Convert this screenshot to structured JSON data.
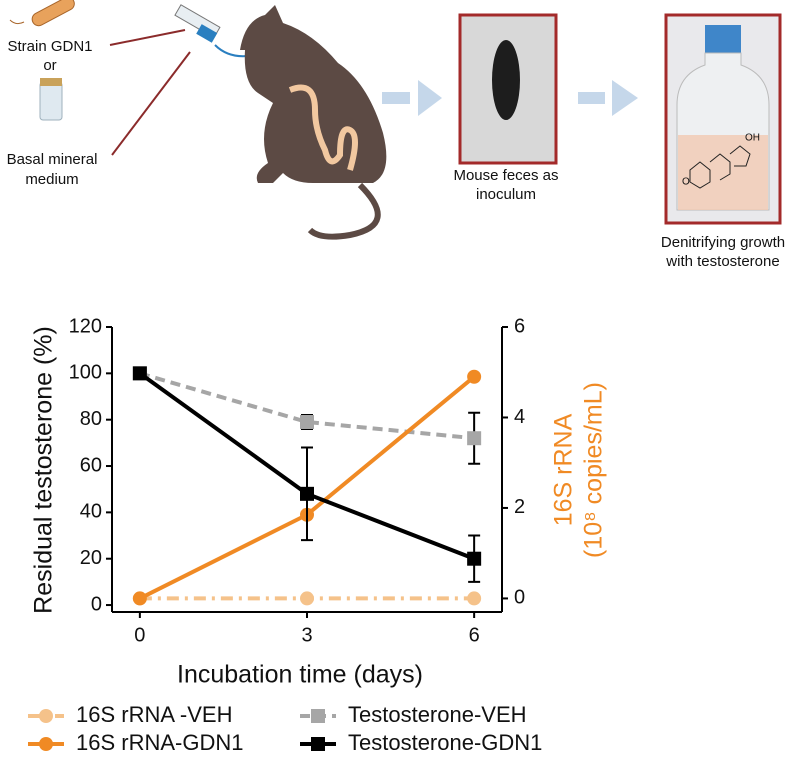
{
  "labels": {
    "strain": "Strain GDN1",
    "or": "or",
    "medium": [
      "Basal mineral",
      "medium"
    ],
    "feces": [
      "Mouse feces as",
      "inoculum"
    ],
    "growth": [
      "Denitrifying growth",
      "with testosterone"
    ],
    "hydroxyl": "OH",
    "ketone": "O"
  },
  "chart_data": {
    "type": "line",
    "x": [
      0,
      3,
      6
    ],
    "xlim": [
      -0.5,
      6.5
    ],
    "xticks": [
      0,
      3,
      6
    ],
    "xlabel": "Incubation time (days)",
    "ylabel": "Residual testosterone (%)",
    "y2label": [
      "16S rRNA",
      "(10⁸ copies/mL)"
    ],
    "ylim": [
      -3,
      120
    ],
    "yticks": [
      0,
      20,
      40,
      60,
      80,
      100,
      120
    ],
    "y2lim": [
      -0.3,
      6
    ],
    "y2ticks": [
      0,
      2,
      4,
      6
    ],
    "legend": "bottom",
    "series": [
      {
        "name": "16S rRNA -VEH",
        "color": "#f5c28a",
        "dash": "dashdot",
        "marker": "circle",
        "axis": "y2",
        "values": [
          0,
          0,
          0
        ]
      },
      {
        "name": "Testosterone-VEH",
        "color": "#a6a6a6",
        "dash": "dashed",
        "marker": "square",
        "values": [
          100,
          79,
          72
        ],
        "errors": [
          0,
          3,
          11
        ]
      },
      {
        "name": "16S rRNA-GDN1",
        "color": "#f08a24",
        "dash": "solid",
        "marker": "circle",
        "axis": "y2",
        "values": [
          0,
          1.85,
          4.9
        ]
      },
      {
        "name": "Testosterone-GDN1",
        "color": "#000000",
        "dash": "solid",
        "marker": "square",
        "values": [
          100,
          48,
          20
        ],
        "errors": [
          0,
          20,
          10
        ]
      }
    ]
  }
}
